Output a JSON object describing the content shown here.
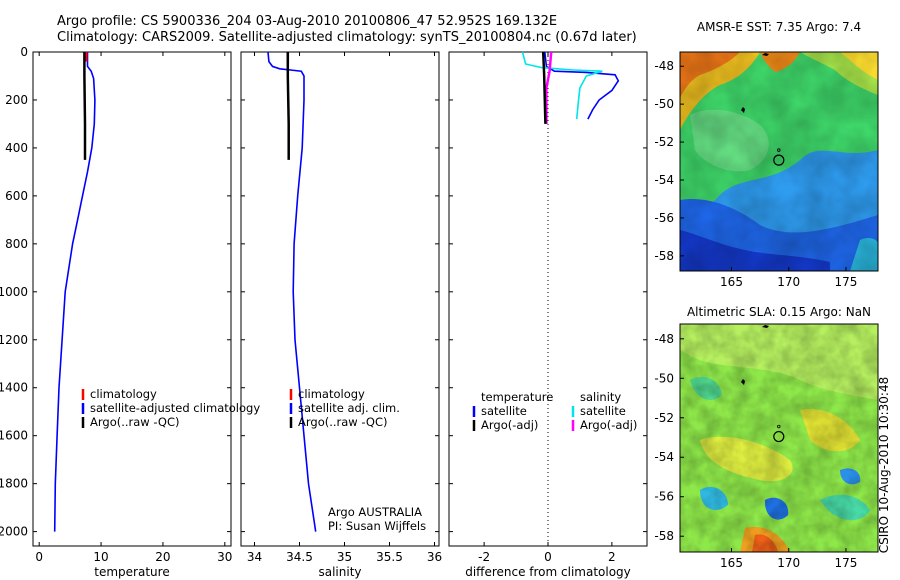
{
  "header": {
    "title_line1": "Argo profile: CS 5900336_204 03-Aug-2010 20100806_47 52.952S 169.132E",
    "title_line2": "Climatology: CARS2009. Satellite-adjusted climatology: synTS_20100804.nc (0.67d later)"
  },
  "side_label": "CSIRO 10-Aug-2010 10:30:48",
  "chart_data": [
    {
      "type": "line",
      "id": "temperature-profile",
      "xlabel": "temperature",
      "ylabel": "",
      "xlim": [
        -1,
        31
      ],
      "ylim": [
        2060,
        0
      ],
      "xticks": [
        0,
        10,
        20,
        30
      ],
      "yticks": [
        0,
        200,
        400,
        600,
        800,
        1000,
        1200,
        1400,
        1600,
        1800,
        2000
      ],
      "legend": [
        "climatology",
        "satellite-adjusted climatology",
        "Argo(..raw -QC)"
      ],
      "series": [
        {
          "name": "satellite-adjusted climatology",
          "color": "#0000ff",
          "x": [
            7.8,
            7.8,
            8.4,
            8.8,
            9.0,
            8.9,
            8.5,
            7.8,
            7.0,
            6.2,
            5.4,
            4.8,
            4.2,
            3.7,
            3.2,
            2.9,
            2.6,
            2.5
          ],
          "y": [
            0,
            60,
            80,
            110,
            200,
            300,
            400,
            500,
            600,
            700,
            800,
            900,
            1000,
            1200,
            1400,
            1600,
            1800,
            2000
          ]
        },
        {
          "name": "climatology",
          "color": "#ff0000",
          "x": [
            7.6,
            7.6,
            7.6
          ],
          "y": [
            0,
            20,
            40
          ]
        },
        {
          "name": "Argo(..raw -QC)",
          "color": "#000000",
          "x": [
            7.3,
            7.3,
            7.4,
            7.4
          ],
          "y": [
            0,
            100,
            300,
            450
          ]
        }
      ]
    },
    {
      "type": "line",
      "id": "salinity-profile",
      "xlabel": "salinity",
      "ylabel": "",
      "xlim": [
        33.85,
        36.05
      ],
      "ylim": [
        2060,
        0
      ],
      "xticks": [
        34,
        34.5,
        35,
        35.5,
        36
      ],
      "legend": [
        "climatology",
        "satellite adj. clim.",
        "Argo(..raw -QC)"
      ],
      "annotations": [
        "Argo AUSTRALIA",
        "PI: Susan Wijffels"
      ],
      "series": [
        {
          "name": "satellite adj. clim.",
          "color": "#0000ff",
          "x": [
            34.15,
            34.16,
            34.2,
            34.28,
            34.4,
            34.52,
            34.55,
            34.55,
            34.53,
            34.48,
            34.44,
            34.43,
            34.45,
            34.5,
            34.55,
            34.6,
            34.64,
            34.68
          ],
          "y": [
            0,
            40,
            60,
            70,
            75,
            80,
            100,
            200,
            400,
            600,
            800,
            1000,
            1200,
            1400,
            1600,
            1800,
            1900,
            2000
          ]
        },
        {
          "name": "climatology",
          "color": "#ff0000",
          "x": [
            34.37,
            34.37
          ],
          "y": [
            0,
            40
          ]
        },
        {
          "name": "Argo(..raw -QC)",
          "color": "#000000",
          "x": [
            34.37,
            34.37,
            34.38,
            34.38
          ],
          "y": [
            0,
            100,
            300,
            450
          ]
        }
      ]
    },
    {
      "type": "line",
      "id": "difference-profile",
      "xlabel": "difference from climatology",
      "ylabel": "",
      "xlim": [
        -3.1,
        3.1
      ],
      "ylim": [
        2060,
        0
      ],
      "xticks": [
        -2,
        0,
        2
      ],
      "legend_title_left": "temperature",
      "legend_title_right": "salinity",
      "legend_left": [
        "satellite",
        "Argo(-adj)"
      ],
      "legend_right": [
        "satellite",
        "Argo(-adj)"
      ],
      "series": [
        {
          "name": "temperature satellite",
          "color": "#0000ff",
          "x": [
            -0.1,
            -0.05,
            0.2,
            1.2,
            2.1,
            2.2,
            2.0,
            1.6,
            1.4,
            1.25
          ],
          "y": [
            0,
            60,
            80,
            85,
            95,
            120,
            160,
            200,
            240,
            280
          ]
        },
        {
          "name": "salinity satellite",
          "color": "#00e5e5",
          "x": [
            -0.8,
            -0.7,
            -0.2,
            0.8,
            1.7,
            1.2,
            1.0,
            0.95,
            0.9
          ],
          "y": [
            0,
            50,
            65,
            75,
            80,
            100,
            150,
            210,
            280
          ]
        },
        {
          "name": "salinity Argo(-adj)",
          "color": "#ff00ff",
          "x": [
            0.1,
            0.05,
            -0.05,
            -0.05,
            -0.05
          ],
          "y": [
            0,
            80,
            150,
            220,
            300
          ]
        },
        {
          "name": "temperature Argo(-adj)",
          "color": "#000000",
          "x": [
            -0.15,
            -0.12,
            -0.1,
            -0.08
          ],
          "y": [
            0,
            100,
            200,
            300
          ]
        }
      ]
    }
  ],
  "maps": [
    {
      "title": "AMSR-E SST: 7.35 Argo: 7.4",
      "xticks": [
        "165",
        "170",
        "175"
      ],
      "yticks": [
        "-48",
        "-50",
        "-52",
        "-54",
        "-56",
        "-58"
      ],
      "colorscale": "jet"
    },
    {
      "title": "Altimetric SLA: 0.15 Argo: NaN",
      "xticks": [
        "165",
        "170",
        "175"
      ],
      "yticks": [
        "-48",
        "-50",
        "-52",
        "-54",
        "-56",
        "-58"
      ],
      "colorscale": "jet"
    }
  ]
}
